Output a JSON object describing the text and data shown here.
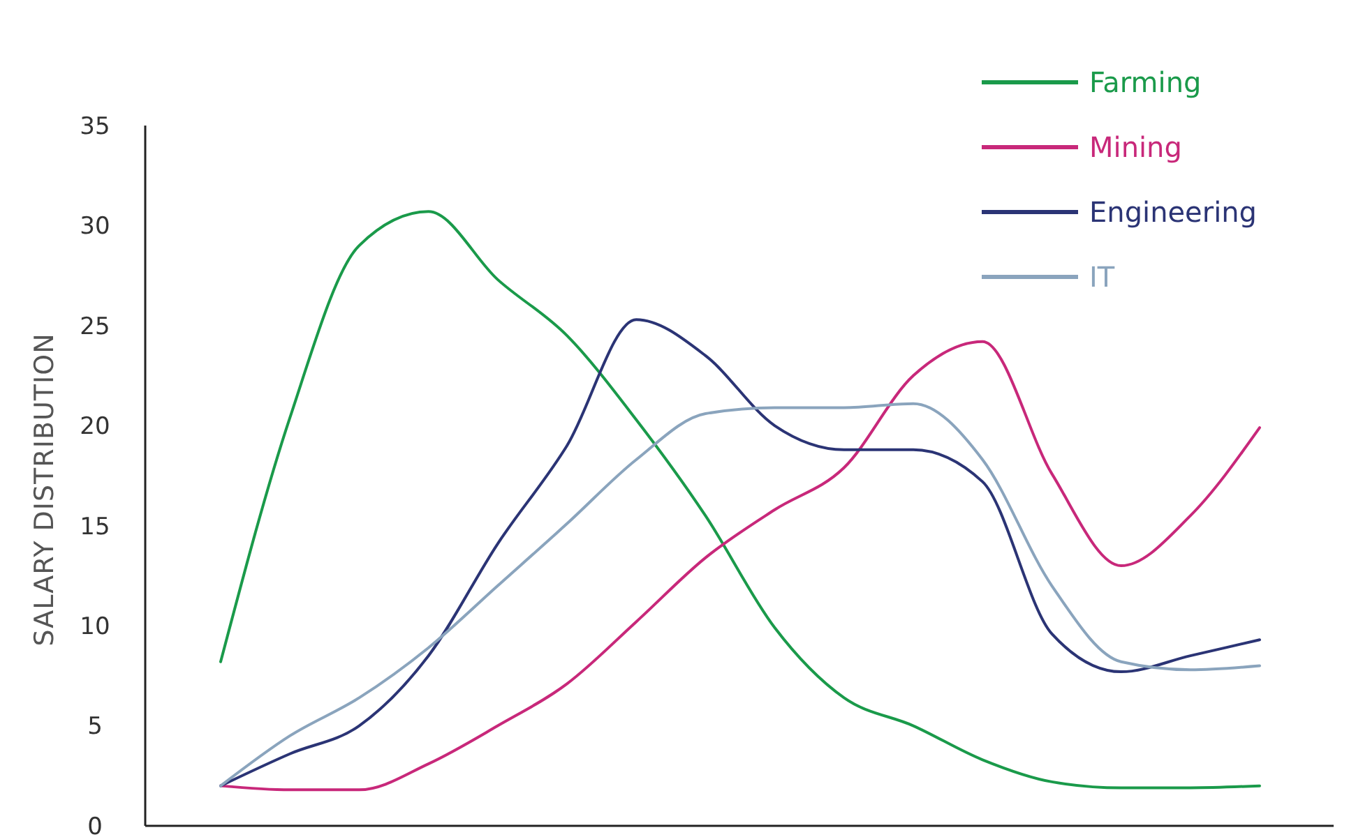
{
  "chart_data": {
    "type": "line",
    "ylabel": "SALARY DISTRIBUTION",
    "categories": [
      null,
      null,
      null,
      null,
      null,
      null,
      null,
      null,
      null,
      null,
      null,
      null,
      null,
      null,
      null,
      null
    ],
    "series": [
      {
        "name": "Farming",
        "color": "#1a9a4a",
        "values": [
          8.2,
          20.4,
          29,
          30.7,
          27.3,
          24.5,
          20.3,
          15.5,
          9.9,
          6.4,
          5,
          3.3,
          2.2,
          1.9,
          1.9,
          2
        ]
      },
      {
        "name": "Mining",
        "color": "#c8287a",
        "values": [
          2,
          1.8,
          1.8,
          3.1,
          5,
          7.1,
          10.2,
          13.4,
          15.8,
          17.9,
          22.5,
          24.2,
          17.6,
          13,
          15.5,
          19.9
        ]
      },
      {
        "name": "Engineering",
        "color": "#2b3475",
        "values": [
          2,
          3.6,
          5,
          8.5,
          14.1,
          19,
          25.3,
          23.5,
          20,
          18.8,
          18.8,
          17.2,
          9.6,
          7.7,
          8.5,
          9.3
        ]
      },
      {
        "name": "IT",
        "color": "#8aa4bd",
        "values": [
          2,
          4.5,
          6.4,
          8.9,
          12,
          15.1,
          18.3,
          20.6,
          20.9,
          20.9,
          21.1,
          18.3,
          12,
          8.2,
          7.8,
          8
        ]
      }
    ],
    "ylim": [
      0,
      35
    ],
    "yticks": [
      0,
      5,
      10,
      15,
      20,
      25,
      30,
      35
    ],
    "legend": "top right",
    "grid": false
  }
}
